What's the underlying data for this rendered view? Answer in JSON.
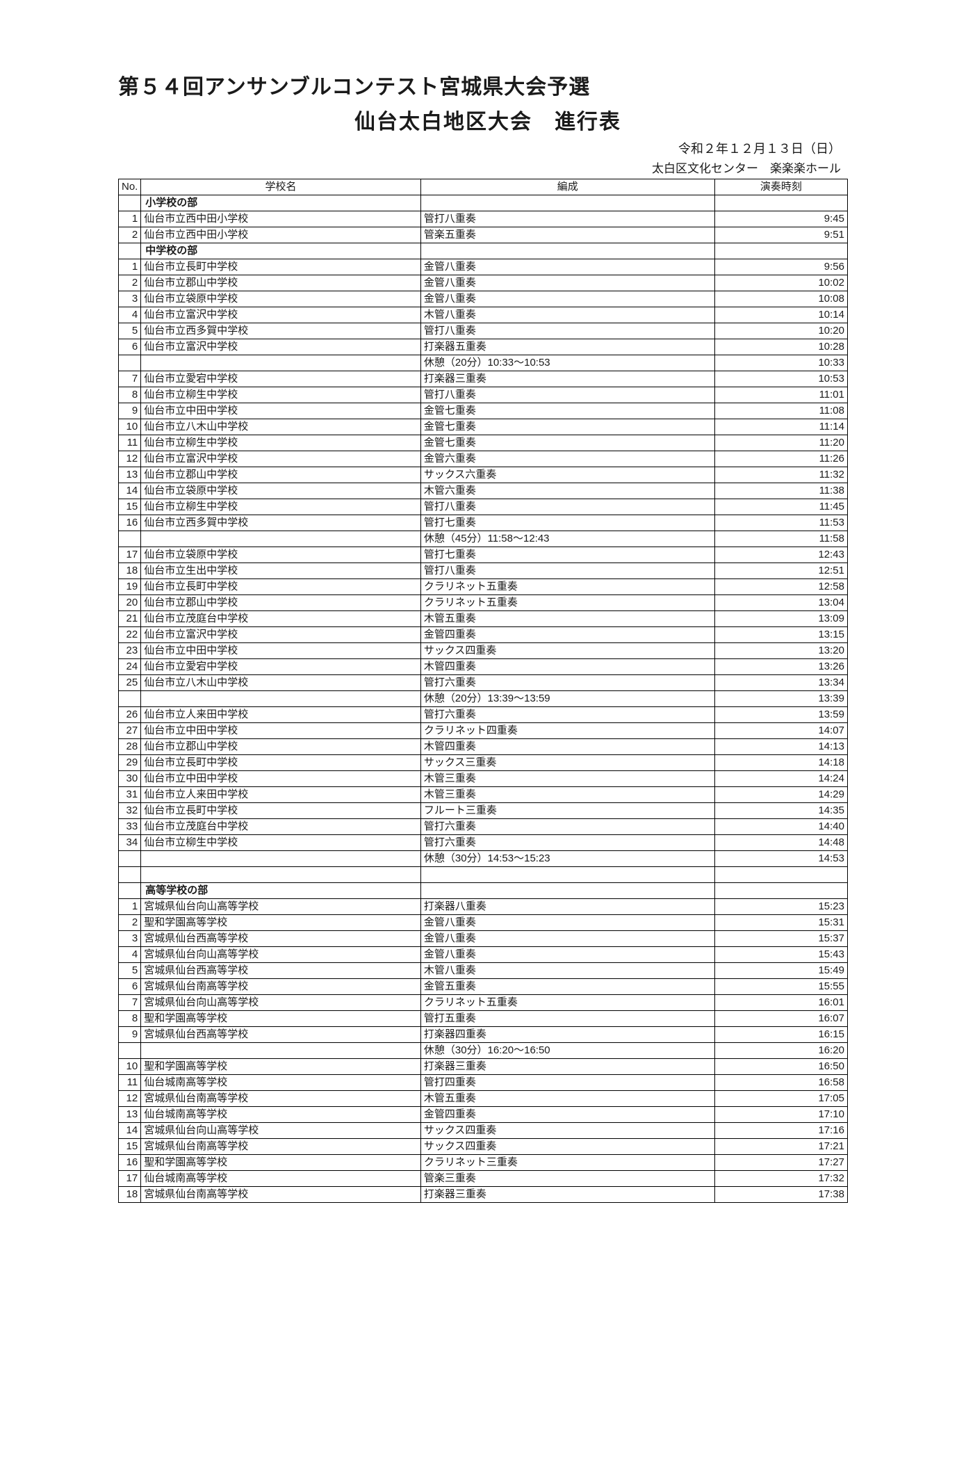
{
  "title_line1": "第５４回アンサンブルコンテスト宮城県大会予選",
  "title_line2": "仙台太白地区大会　進行表",
  "date": "令和２年１２月１３日（日）",
  "venue": "太白区文化センター　楽楽楽ホール",
  "headers": {
    "no": "No.",
    "school": "学校名",
    "formation": "編成",
    "time": "演奏時刻"
  },
  "sections": [
    {
      "name": "小学校の部",
      "rows": [
        {
          "no": "1",
          "school": "仙台市立西中田小学校",
          "form": "管打八重奏",
          "time": "9:45"
        },
        {
          "no": "2",
          "school": "仙台市立西中田小学校",
          "form": "管楽五重奏",
          "time": "9:51"
        }
      ]
    },
    {
      "name": "中学校の部",
      "rows": [
        {
          "no": "1",
          "school": "仙台市立長町中学校",
          "form": "金管八重奏",
          "time": "9:56"
        },
        {
          "no": "2",
          "school": "仙台市立郡山中学校",
          "form": "金管八重奏",
          "time": "10:02"
        },
        {
          "no": "3",
          "school": "仙台市立袋原中学校",
          "form": "金管八重奏",
          "time": "10:08"
        },
        {
          "no": "4",
          "school": "仙台市立富沢中学校",
          "form": "木管八重奏",
          "time": "10:14"
        },
        {
          "no": "5",
          "school": "仙台市立西多賀中学校",
          "form": "管打八重奏",
          "time": "10:20"
        },
        {
          "no": "6",
          "school": "仙台市立富沢中学校",
          "form": "打楽器五重奏",
          "time": "10:28"
        },
        {
          "break": true,
          "form": "休憩（20分）10:33～10:53",
          "time": "10:33"
        },
        {
          "no": "7",
          "school": "仙台市立愛宕中学校",
          "form": "打楽器三重奏",
          "time": "10:53"
        },
        {
          "no": "8",
          "school": "仙台市立柳生中学校",
          "form": "管打八重奏",
          "time": "11:01"
        },
        {
          "no": "9",
          "school": "仙台市立中田中学校",
          "form": "金管七重奏",
          "time": "11:08"
        },
        {
          "no": "10",
          "school": "仙台市立八木山中学校",
          "form": "金管七重奏",
          "time": "11:14"
        },
        {
          "no": "11",
          "school": "仙台市立柳生中学校",
          "form": "金管七重奏",
          "time": "11:20"
        },
        {
          "no": "12",
          "school": "仙台市立富沢中学校",
          "form": "金管六重奏",
          "time": "11:26"
        },
        {
          "no": "13",
          "school": "仙台市立郡山中学校",
          "form": "サックス六重奏",
          "time": "11:32"
        },
        {
          "no": "14",
          "school": "仙台市立袋原中学校",
          "form": "木管六重奏",
          "time": "11:38"
        },
        {
          "no": "15",
          "school": "仙台市立柳生中学校",
          "form": "管打八重奏",
          "time": "11:45"
        },
        {
          "no": "16",
          "school": "仙台市立西多賀中学校",
          "form": "管打七重奏",
          "time": "11:53"
        },
        {
          "break": true,
          "form": "休憩（45分）11:58～12:43",
          "time": "11:58"
        },
        {
          "no": "17",
          "school": "仙台市立袋原中学校",
          "form": "管打七重奏",
          "time": "12:43"
        },
        {
          "no": "18",
          "school": "仙台市立生出中学校",
          "form": "管打八重奏",
          "time": "12:51"
        },
        {
          "no": "19",
          "school": "仙台市立長町中学校",
          "form": "クラリネット五重奏",
          "time": "12:58"
        },
        {
          "no": "20",
          "school": "仙台市立郡山中学校",
          "form": "クラリネット五重奏",
          "time": "13:04"
        },
        {
          "no": "21",
          "school": "仙台市立茂庭台中学校",
          "form": "木管五重奏",
          "time": "13:09"
        },
        {
          "no": "22",
          "school": "仙台市立富沢中学校",
          "form": "金管四重奏",
          "time": "13:15"
        },
        {
          "no": "23",
          "school": "仙台市立中田中学校",
          "form": "サックス四重奏",
          "time": "13:20"
        },
        {
          "no": "24",
          "school": "仙台市立愛宕中学校",
          "form": "木管四重奏",
          "time": "13:26"
        },
        {
          "no": "25",
          "school": "仙台市立八木山中学校",
          "form": "管打六重奏",
          "time": "13:34"
        },
        {
          "break": true,
          "form": "休憩（20分）13:39～13:59",
          "time": "13:39"
        },
        {
          "no": "26",
          "school": "仙台市立人来田中学校",
          "form": "管打六重奏",
          "time": "13:59"
        },
        {
          "no": "27",
          "school": "仙台市立中田中学校",
          "form": "クラリネット四重奏",
          "time": "14:07"
        },
        {
          "no": "28",
          "school": "仙台市立郡山中学校",
          "form": "木管四重奏",
          "time": "14:13"
        },
        {
          "no": "29",
          "school": "仙台市立長町中学校",
          "form": "サックス三重奏",
          "time": "14:18"
        },
        {
          "no": "30",
          "school": "仙台市立中田中学校",
          "form": "木管三重奏",
          "time": "14:24"
        },
        {
          "no": "31",
          "school": "仙台市立人来田中学校",
          "form": "木管三重奏",
          "time": "14:29"
        },
        {
          "no": "32",
          "school": "仙台市立長町中学校",
          "form": "フルート三重奏",
          "time": "14:35"
        },
        {
          "no": "33",
          "school": "仙台市立茂庭台中学校",
          "form": "管打六重奏",
          "time": "14:40"
        },
        {
          "no": "34",
          "school": "仙台市立柳生中学校",
          "form": "管打六重奏",
          "time": "14:48"
        },
        {
          "break": true,
          "form": "休憩（30分）14:53～15:23",
          "time": "14:53"
        }
      ]
    },
    {
      "name": "高等学校の部",
      "leading_blank": true,
      "rows": [
        {
          "no": "1",
          "school": "宮城県仙台向山高等学校",
          "form": "打楽器八重奏",
          "time": "15:23"
        },
        {
          "no": "2",
          "school": "聖和学園高等学校",
          "form": "金管八重奏",
          "time": "15:31"
        },
        {
          "no": "3",
          "school": "宮城県仙台西高等学校",
          "form": "金管八重奏",
          "time": "15:37"
        },
        {
          "no": "4",
          "school": "宮城県仙台向山高等学校",
          "form": "金管八重奏",
          "time": "15:43"
        },
        {
          "no": "5",
          "school": "宮城県仙台西高等学校",
          "form": "木管八重奏",
          "time": "15:49"
        },
        {
          "no": "6",
          "school": "宮城県仙台南高等学校",
          "form": "金管五重奏",
          "time": "15:55"
        },
        {
          "no": "7",
          "school": "宮城県仙台向山高等学校",
          "form": "クラリネット五重奏",
          "time": "16:01"
        },
        {
          "no": "8",
          "school": "聖和学園高等学校",
          "form": "管打五重奏",
          "time": "16:07"
        },
        {
          "no": "9",
          "school": "宮城県仙台西高等学校",
          "form": "打楽器四重奏",
          "time": "16:15"
        },
        {
          "break": true,
          "form": "休憩（30分）16:20～16:50",
          "time": "16:20"
        },
        {
          "no": "10",
          "school": "聖和学園高等学校",
          "form": "打楽器三重奏",
          "time": "16:50"
        },
        {
          "no": "11",
          "school": "仙台城南高等学校",
          "form": "管打四重奏",
          "time": "16:58"
        },
        {
          "no": "12",
          "school": "宮城県仙台南高等学校",
          "form": "木管五重奏",
          "time": "17:05"
        },
        {
          "no": "13",
          "school": "仙台城南高等学校",
          "form": "金管四重奏",
          "time": "17:10"
        },
        {
          "no": "14",
          "school": "宮城県仙台向山高等学校",
          "form": "サックス四重奏",
          "time": "17:16"
        },
        {
          "no": "15",
          "school": "宮城県仙台南高等学校",
          "form": "サックス四重奏",
          "time": "17:21"
        },
        {
          "no": "16",
          "school": "聖和学園高等学校",
          "form": "クラリネット三重奏",
          "time": "17:27"
        },
        {
          "no": "17",
          "school": "仙台城南高等学校",
          "form": "管楽三重奏",
          "time": "17:32"
        },
        {
          "no": "18",
          "school": "宮城県仙台南高等学校",
          "form": "打楽器三重奏",
          "time": "17:38"
        }
      ]
    }
  ]
}
